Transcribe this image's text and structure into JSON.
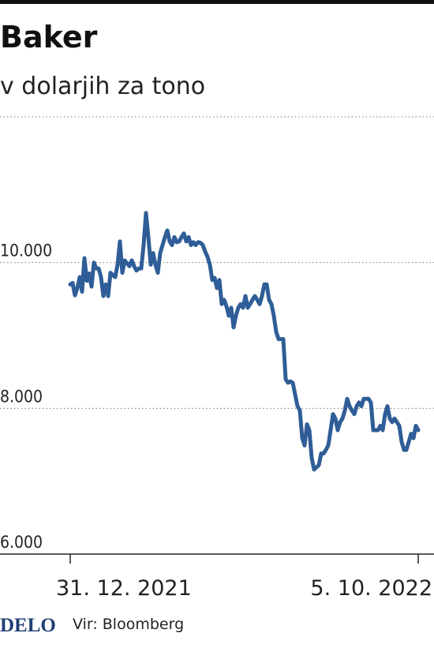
{
  "chart_data": {
    "type": "line",
    "title": "Baker",
    "subtitle": "v dolarjih za tono",
    "color": "#2f5d97",
    "values": [
      9700,
      9720,
      9550,
      9650,
      9800,
      9600,
      10060,
      9750,
      9850,
      9670,
      10000,
      9920,
      9920,
      9800,
      9540,
      9700,
      9540,
      9860,
      9830,
      9800,
      9970,
      10290,
      9860,
      10030,
      9990,
      9950,
      10030,
      9950,
      9890,
      9920,
      9920,
      10240,
      10680,
      10350,
      9970,
      10130,
      9970,
      9860,
      10130,
      10240,
      10350,
      10440,
      10290,
      10240,
      10350,
      10280,
      10290,
      10350,
      10400,
      10290,
      10350,
      10240,
      10280,
      10240,
      10280,
      10270,
      10240,
      10150,
      10080,
      9970,
      9760,
      9790,
      9650,
      9760,
      9430,
      9490,
      9400,
      9270,
      9380,
      9110,
      9270,
      9380,
      9430,
      9380,
      9540,
      9380,
      9430,
      9490,
      9540,
      9490,
      9430,
      9540,
      9700,
      9700,
      9490,
      9430,
      9270,
      9050,
      8950,
      8950,
      8950,
      8400,
      8350,
      8370,
      8350,
      8190,
      8030,
      7970,
      7590,
      7490,
      7780,
      7700,
      7320,
      7160,
      7190,
      7220,
      7380,
      7380,
      7430,
      7490,
      7700,
      7920,
      7860,
      7700,
      7810,
      7860,
      7970,
      8130,
      8030,
      7970,
      7920,
      8030,
      8080,
      8030,
      8130,
      8130,
      8130,
      8080,
      7700,
      7700,
      7700,
      7760,
      7700,
      7920,
      8030,
      7860,
      7810,
      7860,
      7810,
      7760,
      7540,
      7430,
      7430,
      7540,
      7650,
      7590,
      7760,
      7700
    ],
    "xlim": [
      0,
      147
    ],
    "xticks": [
      {
        "value": 0,
        "label": "31. 12. 2021"
      },
      {
        "value": 147,
        "label": "5. 10. 2022"
      }
    ],
    "ylim": [
      6000,
      12000
    ],
    "yticks": [
      {
        "value": 6000,
        "label": "6.000"
      },
      {
        "value": 8000,
        "label": "8.000"
      },
      {
        "value": 10000,
        "label": "10.000"
      }
    ],
    "grid": true
  },
  "footer": {
    "brand": "DELO",
    "source": "Vir: Bloomberg"
  }
}
